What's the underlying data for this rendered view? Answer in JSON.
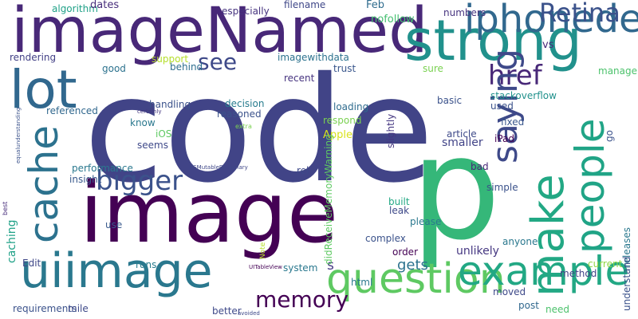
{
  "words": [
    {
      "text": "code",
      "color": "#414487"
    },
    {
      "text": "image",
      "color": "#440154"
    },
    {
      "text": "p",
      "color": "#35b779"
    },
    {
      "text": "imageNamed",
      "color": "#482878"
    },
    {
      "text": "strong",
      "color": "#21918c"
    },
    {
      "text": "lot",
      "color": "#31688e"
    },
    {
      "text": "uiimage",
      "color": "#2a788e"
    },
    {
      "text": "question",
      "color": "#5ec962"
    },
    {
      "text": "example",
      "color": "#22a884"
    },
    {
      "text": "iphonedevelopertips",
      "color": "#31688e"
    },
    {
      "text": "bigger",
      "color": "#3b528b"
    },
    {
      "text": "Retina",
      "color": "#3b528b"
    },
    {
      "text": "href",
      "color": "#482878"
    },
    {
      "text": "see",
      "color": "#3e4989"
    },
    {
      "text": "memory",
      "color": "#440154"
    },
    {
      "text": "s",
      "color": "#443983"
    },
    {
      "text": "gets",
      "color": "#2c728e"
    },
    {
      "text": "cache",
      "color": "#2c728e"
    },
    {
      "text": "make",
      "color": "#22a884"
    },
    {
      "text": "people",
      "color": "#20a486"
    },
    {
      "text": "saying",
      "color": "#3e4989"
    },
    {
      "text": "caching",
      "color": "#1fa187"
    },
    {
      "text": "algorithm",
      "color": "#1fa187"
    },
    {
      "text": "dates",
      "color": "#472d7b"
    },
    {
      "text": "especially",
      "color": "#46337f"
    },
    {
      "text": "filename",
      "color": "#3f4788"
    },
    {
      "text": "Feb",
      "color": "#2f6c8e"
    },
    {
      "text": "numbers",
      "color": "#46337f"
    },
    {
      "text": "vs",
      "color": "#482878"
    },
    {
      "text": "nofollow",
      "color": "#44bf70"
    },
    {
      "text": "rendering",
      "color": "#424086"
    },
    {
      "text": "imagewithdata",
      "color": "#2c728e"
    },
    {
      "text": "support",
      "color": "#b5de2b"
    },
    {
      "text": "behind",
      "color": "#2e6e8e"
    },
    {
      "text": "good",
      "color": "#2c728e"
    },
    {
      "text": "recent",
      "color": "#46337f"
    },
    {
      "text": "trust",
      "color": "#39568c"
    },
    {
      "text": "sure",
      "color": "#7ad151"
    },
    {
      "text": "management",
      "color": "#4cc26c"
    },
    {
      "text": "basic",
      "color": "#3b528b"
    },
    {
      "text": "stackoverflow",
      "color": "#21918c"
    },
    {
      "text": "used",
      "color": "#3b528b"
    },
    {
      "text": "referenced",
      "color": "#31688e"
    },
    {
      "text": "handling",
      "color": "#3b528b"
    },
    {
      "text": "decision",
      "color": "#287c8e"
    },
    {
      "text": "reasoned",
      "color": "#3b528b"
    },
    {
      "text": "loading",
      "color": "#2f6c8e"
    },
    {
      "text": "fixed",
      "color": "#39568c"
    },
    {
      "text": "respond",
      "color": "#7ad151"
    },
    {
      "text": "know",
      "color": "#2a788e"
    },
    {
      "text": "certainly",
      "color": "#453781"
    },
    {
      "text": "extra",
      "color": "#7ad151"
    },
    {
      "text": "iOS",
      "color": "#5ec962"
    },
    {
      "text": "seems",
      "color": "#3e4989"
    },
    {
      "text": "Apple",
      "color": "#d8e219"
    },
    {
      "text": "article",
      "color": "#3e4989"
    },
    {
      "text": "smaller",
      "color": "#414487"
    },
    {
      "text": "iPad",
      "color": "#440154"
    },
    {
      "text": "performance",
      "color": "#2a788e"
    },
    {
      "text": "rel",
      "color": "#3e4989"
    },
    {
      "text": "bad",
      "color": "#482878"
    },
    {
      "text": "NSMutableDictionary",
      "color": "#3f4788"
    },
    {
      "text": "insight",
      "color": "#38598c"
    },
    {
      "text": "simple",
      "color": "#3b528b"
    },
    {
      "text": "built",
      "color": "#22a884"
    },
    {
      "text": "leak",
      "color": "#3e4989"
    },
    {
      "text": "please",
      "color": "#2a788e"
    },
    {
      "text": "use",
      "color": "#38598c"
    },
    {
      "text": "complex",
      "color": "#3b528b"
    },
    {
      "text": "order",
      "color": "#440154"
    },
    {
      "text": "anyone",
      "color": "#2a788e"
    },
    {
      "text": "unlikely",
      "color": "#453781"
    },
    {
      "text": "Edit",
      "color": "#3f4788"
    },
    {
      "text": "runs",
      "color": "#287c8e"
    },
    {
      "text": "system",
      "color": "#2a788e"
    },
    {
      "text": "current",
      "color": "#8fd744"
    },
    {
      "text": "method",
      "color": "#414487"
    },
    {
      "text": "UITableView",
      "color": "#440154"
    },
    {
      "text": "html",
      "color": "#2a788e"
    },
    {
      "text": "moved",
      "color": "#3e4989"
    },
    {
      "text": "requirements",
      "color": "#3b528b"
    },
    {
      "text": "mile",
      "color": "#3e4989"
    },
    {
      "text": "better",
      "color": "#3e4989"
    },
    {
      "text": "avoided",
      "color": "#3e4989"
    },
    {
      "text": "post",
      "color": "#31688e"
    },
    {
      "text": "need",
      "color": "#4cc26c"
    },
    {
      "text": "slightly",
      "color": "#453781"
    },
    {
      "text": "go",
      "color": "#3b528b"
    },
    {
      "text": "releases",
      "color": "#2a788e"
    },
    {
      "text": "equalunderstanding",
      "color": "#3b528b"
    },
    {
      "text": "best",
      "color": "#472d7b"
    },
    {
      "text": "didReceiveMemoryWarning",
      "color": "#5ec962"
    },
    {
      "text": "Note",
      "color": "#b5de2b"
    },
    {
      "text": "understand",
      "color": "#3b528b"
    }
  ]
}
